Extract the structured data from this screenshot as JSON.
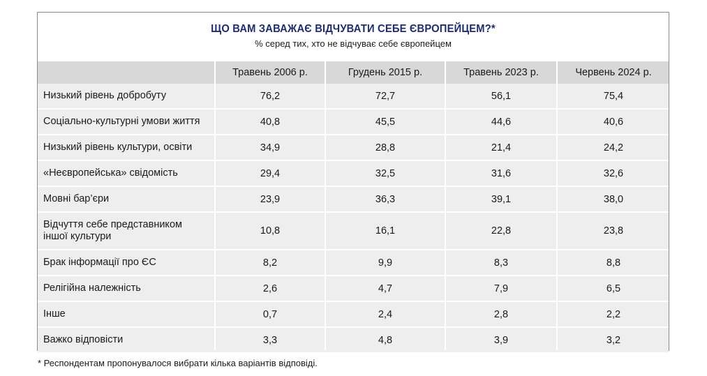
{
  "table": {
    "title": "ЩО ВАМ ЗАВАЖАЄ ВІДЧУВАТИ СЕБЕ ЄВРОПЕЙЦЕМ?*",
    "subtitle": "% серед тих, хто не відчуває себе європейцем",
    "columns": [
      "",
      "Травень 2006 р.",
      "Грудень 2015 р.",
      "Травень 2023 р.",
      "Червень 2024 р."
    ],
    "rows": [
      {
        "label": "Низький рівень добробуту",
        "values": [
          "76,2",
          "72,7",
          "56,1",
          "75,4"
        ]
      },
      {
        "label": "Соціально-культурні умови життя",
        "values": [
          "40,8",
          "45,5",
          "44,6",
          "40,6"
        ]
      },
      {
        "label": "Низький рівень культури, освіти",
        "values": [
          "34,9",
          "28,8",
          "21,4",
          "24,2"
        ]
      },
      {
        "label": "«Неєвропейська» свідомість",
        "values": [
          "29,4",
          "32,5",
          "31,6",
          "32,6"
        ]
      },
      {
        "label": "Мовні бар’єри",
        "values": [
          "23,9",
          "36,3",
          "39,1",
          "38,0"
        ]
      },
      {
        "label": "Відчуття себе представником іншої культури",
        "values": [
          "10,8",
          "16,1",
          "22,8",
          "23,8"
        ]
      },
      {
        "label": "Брак інформації про ЄС",
        "values": [
          "8,2",
          "9,9",
          "8,3",
          "8,8"
        ]
      },
      {
        "label": "Релігійна належність",
        "values": [
          "2,6",
          "4,7",
          "7,9",
          "6,5"
        ]
      },
      {
        "label": "Інше",
        "values": [
          "0,7",
          "2,4",
          "2,8",
          "2,2"
        ]
      },
      {
        "label": "Важко відповісти",
        "values": [
          "3,3",
          "4,8",
          "3,9",
          "3,2"
        ]
      }
    ],
    "footnote": "* Респондентам пропонувалося вибрати кілька варіантів відповіді."
  }
}
